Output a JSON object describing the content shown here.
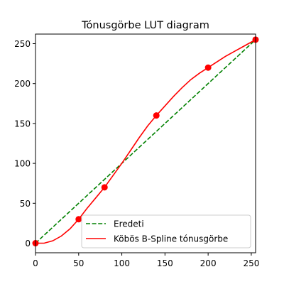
{
  "chart_data": {
    "type": "line",
    "title": "Tónusgörbe LUT diagram",
    "xlabel": "",
    "ylabel": "",
    "xlim": [
      0,
      255
    ],
    "ylim": [
      -12,
      262
    ],
    "xticks": [
      0,
      50,
      100,
      150,
      200,
      250
    ],
    "yticks": [
      0,
      50,
      100,
      150,
      200,
      250
    ],
    "grid": false,
    "legend_position": "lower-right",
    "series": [
      {
        "name": "Eredeti",
        "style": "dashed",
        "color": "#008000",
        "x": [
          0,
          255
        ],
        "y": [
          0,
          255
        ]
      },
      {
        "name": "Köbös B-Spline tónusgörbe",
        "style": "solid",
        "color": "#ff0000",
        "x": [
          0,
          10,
          20,
          30,
          40,
          50,
          60,
          70,
          80,
          90,
          100,
          110,
          120,
          130,
          140,
          150,
          160,
          170,
          180,
          190,
          200,
          210,
          220,
          230,
          240,
          255
        ],
        "y": [
          0,
          0,
          3,
          9,
          18,
          30,
          44,
          57,
          70,
          85,
          100,
          116,
          132,
          147,
          160,
          172,
          184,
          195,
          205,
          213,
          220,
          227,
          234,
          240,
          246,
          255
        ]
      }
    ],
    "control_points": {
      "color": "#ff0000",
      "x": [
        0,
        50,
        80,
        140,
        200,
        255
      ],
      "y": [
        0,
        30,
        70,
        160,
        220,
        255
      ]
    }
  }
}
